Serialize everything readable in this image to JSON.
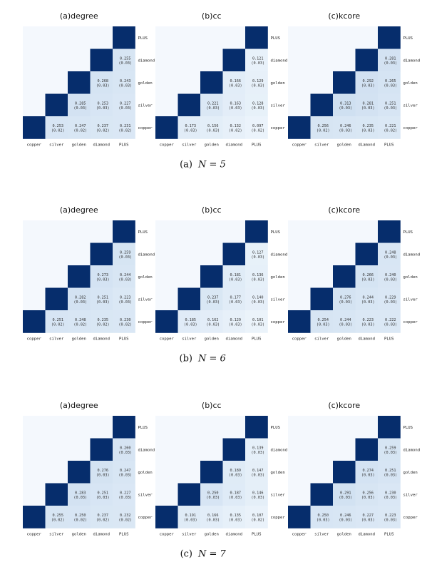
{
  "colors": {
    "diagonal": "#062d6c",
    "empty": "#f4f8fd",
    "cell_light": "#e8f1fa",
    "cell_dark": "#cfe0f2"
  },
  "panels": [
    {
      "caption_label": "(a)",
      "caption_eq": "N = 5",
      "chart_data": [
        {
          "type": "heatmap",
          "title": "(a)degree",
          "x": [
            "copper",
            "silver",
            "golden",
            "diamond",
            "PLUS"
          ],
          "y": [
            "PLUS",
            "diamond",
            "golden",
            "silver",
            "copper"
          ],
          "cells": [
            [
              "",
              "",
              "",
              "",
              ""
            ],
            [
              "",
              "",
              "",
              "",
              "0.255\n(0.03)"
            ],
            [
              "",
              "",
              "",
              "0.268\n(0.03)",
              "0.243\n(0.03)"
            ],
            [
              "",
              "",
              "0.285\n(0.03)",
              "0.253\n(0.03)",
              "0.227\n(0.03)"
            ],
            [
              "",
              "0.253\n(0.02)",
              "0.247\n(0.02)",
              "0.237\n(0.02)",
              "0.231\n(0.02)"
            ]
          ]
        },
        {
          "type": "heatmap",
          "title": "(b)cc",
          "x": [
            "copper",
            "silver",
            "golden",
            "diamond",
            "PLUS"
          ],
          "y": [
            "PLUS",
            "diamond",
            "golden",
            "silver",
            "copper"
          ],
          "cells": [
            [
              "",
              "",
              "",
              "",
              ""
            ],
            [
              "",
              "",
              "",
              "",
              "0.121\n(0.03)"
            ],
            [
              "",
              "",
              "",
              "0.166\n(0.03)",
              "0.129\n(0.03)"
            ],
            [
              "",
              "",
              "0.221\n(0.03)",
              "0.163\n(0.03)",
              "0.128\n(0.03)"
            ],
            [
              "",
              "0.173\n(0.03)",
              "0.156\n(0.03)",
              "0.132\n(0.02)",
              "0.097\n(0.02)"
            ]
          ]
        },
        {
          "type": "heatmap",
          "title": "(c)kcore",
          "x": [
            "copper",
            "silver",
            "golden",
            "diamond",
            "PLUS"
          ],
          "y": [
            "PLUS",
            "diamond",
            "golden",
            "silver",
            "copper"
          ],
          "cells": [
            [
              "",
              "",
              "",
              "",
              ""
            ],
            [
              "",
              "",
              "",
              "",
              "0.281\n(0.03)"
            ],
            [
              "",
              "",
              "",
              "0.292\n(0.03)",
              "0.265\n(0.03)"
            ],
            [
              "",
              "",
              "0.313\n(0.03)",
              "0.281\n(0.03)",
              "0.251\n(0.03)"
            ],
            [
              "",
              "0.256\n(0.02)",
              "0.246\n(0.03)",
              "0.235\n(0.03)",
              "0.221\n(0.02)"
            ]
          ]
        }
      ]
    },
    {
      "caption_label": "(b)",
      "caption_eq": "N = 6",
      "chart_data": [
        {
          "type": "heatmap",
          "title": "(a)degree",
          "x": [
            "copper",
            "silver",
            "golden",
            "diamond",
            "PLUS"
          ],
          "y": [
            "PLUS",
            "diamond",
            "golden",
            "silver",
            "copper"
          ],
          "cells": [
            [
              "",
              "",
              "",
              "",
              ""
            ],
            [
              "",
              "",
              "",
              "",
              "0.259\n(0.03)"
            ],
            [
              "",
              "",
              "",
              "0.273\n(0.03)",
              "0.244\n(0.03)"
            ],
            [
              "",
              "",
              "0.282\n(0.03)",
              "0.251\n(0.03)",
              "0.223\n(0.03)"
            ],
            [
              "",
              "0.251\n(0.02)",
              "0.248\n(0.02)",
              "0.235\n(0.02)",
              "0.230\n(0.02)"
            ]
          ]
        },
        {
          "type": "heatmap",
          "title": "(b)cc",
          "x": [
            "copper",
            "silver",
            "golden",
            "diamond",
            "PLUS"
          ],
          "y": [
            "PLUS",
            "diamond",
            "golden",
            "silver",
            "copper"
          ],
          "cells": [
            [
              "",
              "",
              "",
              "",
              ""
            ],
            [
              "",
              "",
              "",
              "",
              "0.127\n(0.03)"
            ],
            [
              "",
              "",
              "",
              "0.181\n(0.03)",
              "0.136\n(0.03)"
            ],
            [
              "",
              "",
              "0.237\n(0.03)",
              "0.177\n(0.03)",
              "0.140\n(0.03)"
            ],
            [
              "",
              "0.185\n(0.03)",
              "0.162\n(0.03)",
              "0.129\n(0.03)",
              "0.101\n(0.03)"
            ]
          ]
        },
        {
          "type": "heatmap",
          "title": "(c)kcore",
          "x": [
            "copper",
            "silver",
            "golden",
            "diamond",
            "PLUS"
          ],
          "y": [
            "PLUS",
            "diamond",
            "golden",
            "silver",
            "copper"
          ],
          "cells": [
            [
              "",
              "",
              "",
              "",
              ""
            ],
            [
              "",
              "",
              "",
              "",
              "0.248\n(0.03)"
            ],
            [
              "",
              "",
              "",
              "0.266\n(0.03)",
              "0.240\n(0.03)"
            ],
            [
              "",
              "",
              "0.276\n(0.03)",
              "0.244\n(0.03)",
              "0.229\n(0.03)"
            ],
            [
              "",
              "0.254\n(0.03)",
              "0.244\n(0.03)",
              "0.223\n(0.03)",
              "0.222\n(0.03)"
            ]
          ]
        }
      ]
    },
    {
      "caption_label": "(c)",
      "caption_eq": "N = 7",
      "chart_data": [
        {
          "type": "heatmap",
          "title": "(a)degree",
          "x": [
            "copper",
            "silver",
            "golden",
            "diamond",
            "PLUS"
          ],
          "y": [
            "PLUS",
            "diamond",
            "golden",
            "silver",
            "copper"
          ],
          "cells": [
            [
              "",
              "",
              "",
              "",
              ""
            ],
            [
              "",
              "",
              "",
              "",
              "0.260\n(0.03)"
            ],
            [
              "",
              "",
              "",
              "0.276\n(0.03)",
              "0.247\n(0.03)"
            ],
            [
              "",
              "",
              "0.283\n(0.03)",
              "0.251\n(0.03)",
              "0.227\n(0.03)"
            ],
            [
              "",
              "0.255\n(0.02)",
              "0.250\n(0.02)",
              "0.237\n(0.02)",
              "0.232\n(0.02)"
            ]
          ]
        },
        {
          "type": "heatmap",
          "title": "(b)cc",
          "x": [
            "copper",
            "silver",
            "golden",
            "diamond",
            "PLUS"
          ],
          "y": [
            "PLUS",
            "diamond",
            "golden",
            "silver",
            "copper"
          ],
          "cells": [
            [
              "",
              "",
              "",
              "",
              ""
            ],
            [
              "",
              "",
              "",
              "",
              "0.139\n(0.03)"
            ],
            [
              "",
              "",
              "",
              "0.189\n(0.03)",
              "0.147\n(0.03)"
            ],
            [
              "",
              "",
              "0.250\n(0.03)",
              "0.187\n(0.03)",
              "0.146\n(0.03)"
            ],
            [
              "",
              "0.191\n(0.03)",
              "0.166\n(0.03)",
              "0.135\n(0.03)",
              "0.107\n(0.02)"
            ]
          ]
        },
        {
          "type": "heatmap",
          "title": "(c)kcore",
          "x": [
            "copper",
            "silver",
            "golden",
            "diamond",
            "PLUS"
          ],
          "y": [
            "PLUS",
            "diamond",
            "golden",
            "silver",
            "copper"
          ],
          "cells": [
            [
              "",
              "",
              "",
              "",
              ""
            ],
            [
              "",
              "",
              "",
              "",
              "0.259\n(0.03)"
            ],
            [
              "",
              "",
              "",
              "0.274\n(0.03)",
              "0.251\n(0.03)"
            ],
            [
              "",
              "",
              "0.291\n(0.03)",
              "0.256\n(0.03)",
              "0.230\n(0.03)"
            ],
            [
              "",
              "0.250\n(0.03)",
              "0.246\n(0.03)",
              "0.227\n(0.03)",
              "0.223\n(0.03)"
            ]
          ]
        }
      ]
    }
  ]
}
